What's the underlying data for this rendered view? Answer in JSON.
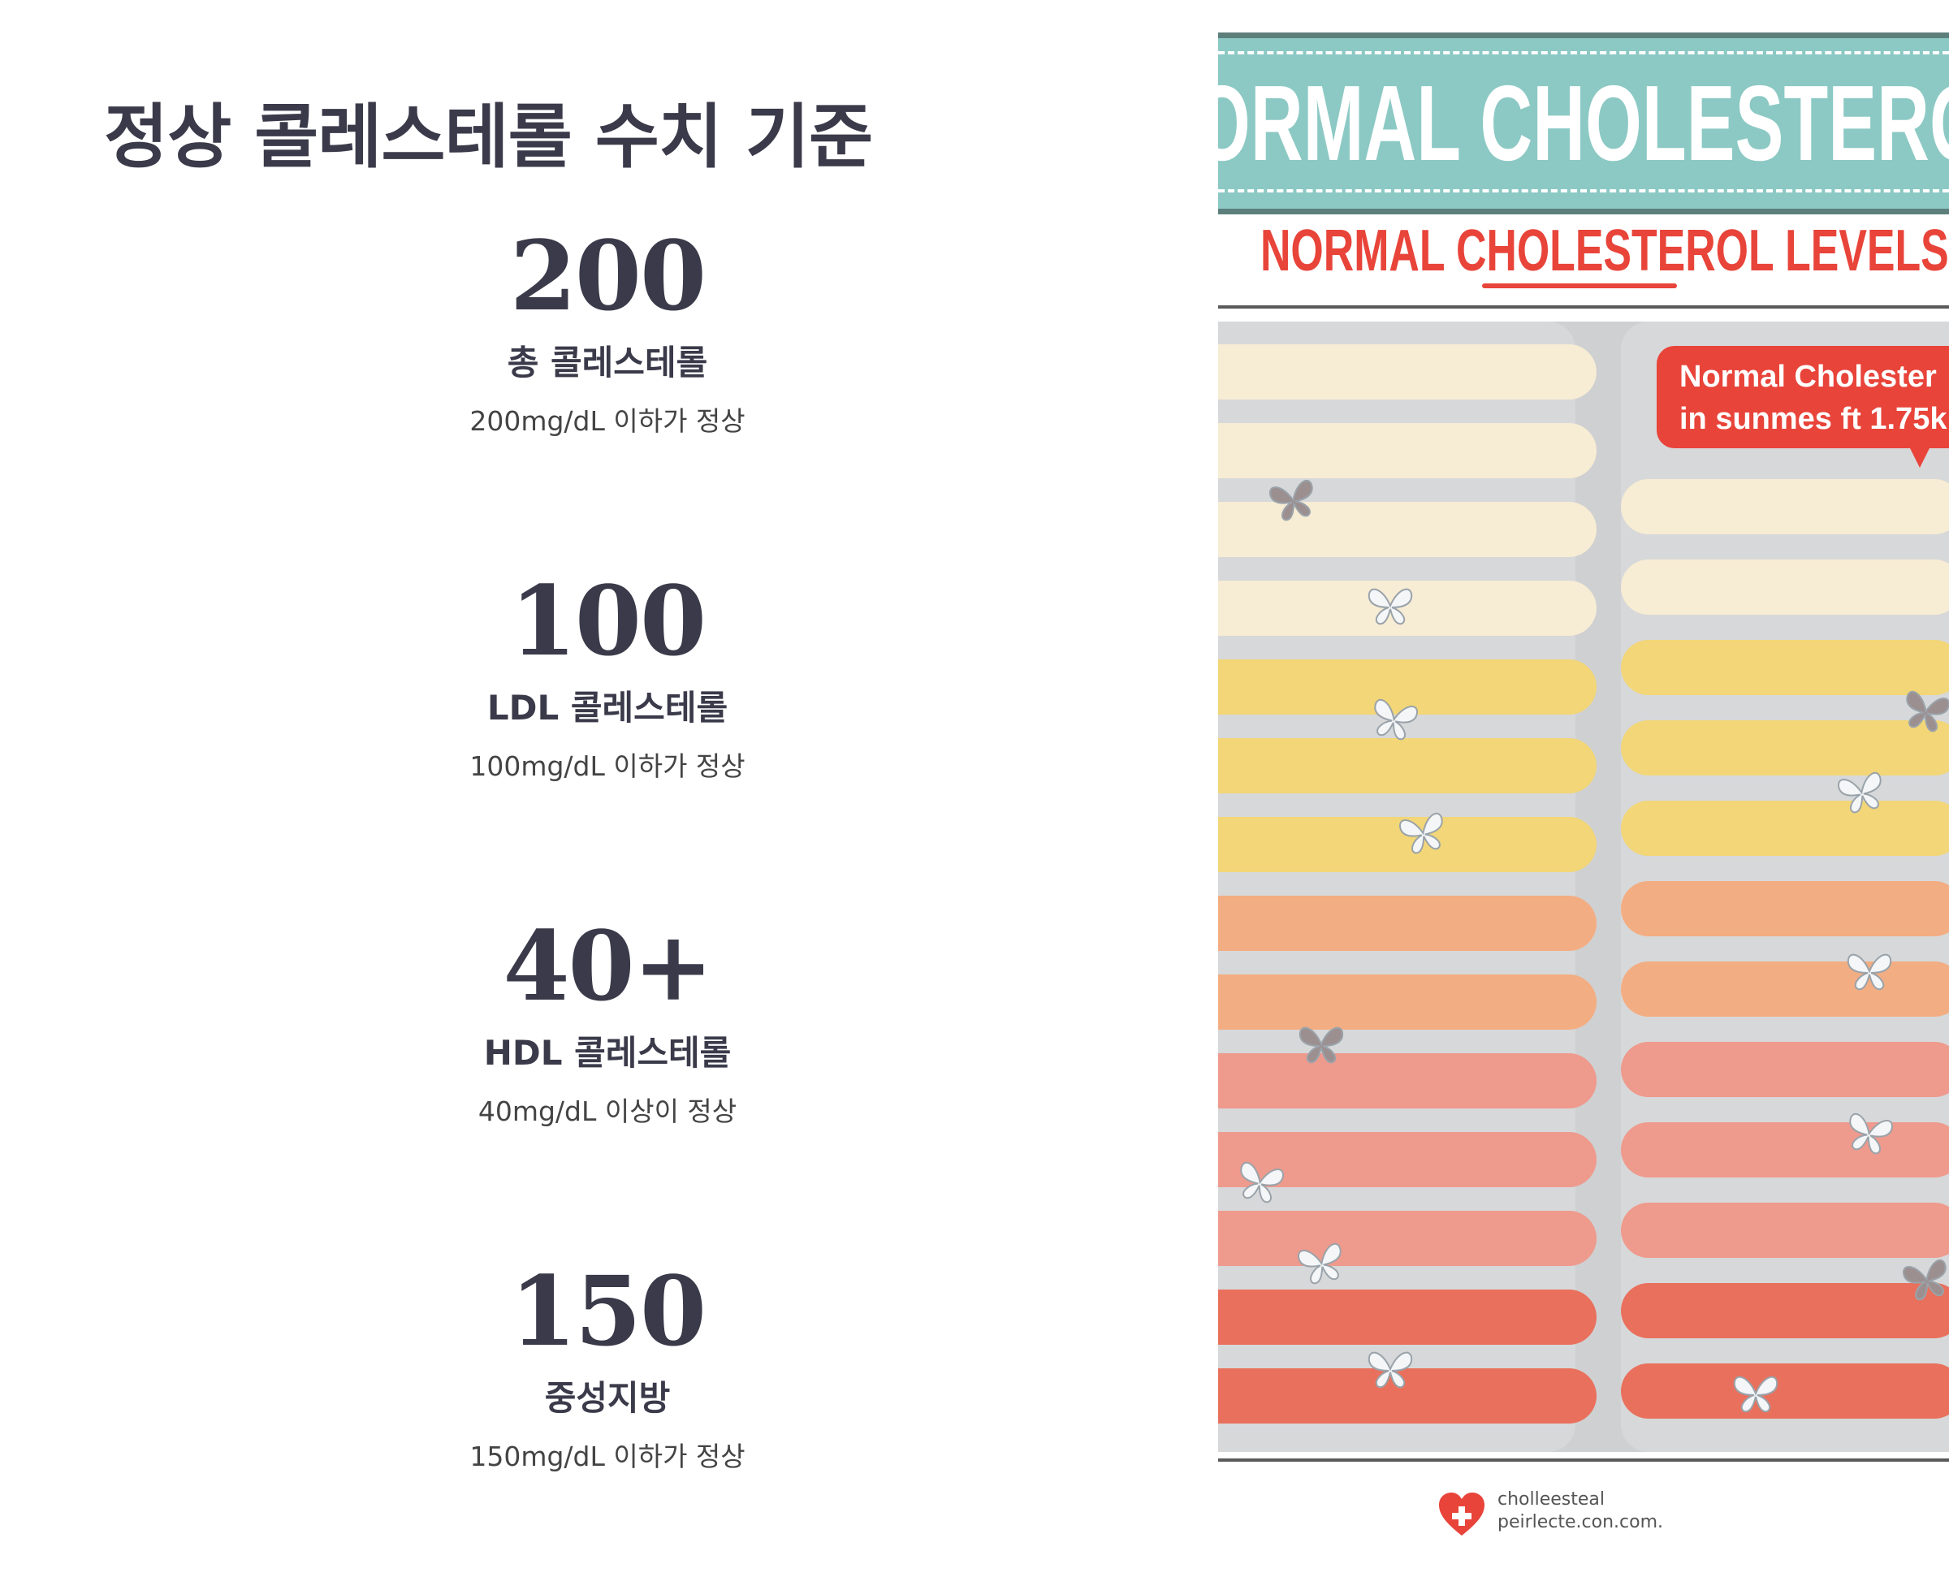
{
  "page": {
    "title": "정상 콜레스테롤 수치 기준"
  },
  "stats": [
    {
      "value": "200",
      "label": "총 콜레스테롤",
      "desc": "200mg/dL 이하가 정상"
    },
    {
      "value": "100",
      "label": "LDL 콜레스테롤",
      "desc": "100mg/dL 이하가 정상"
    },
    {
      "value": "40+",
      "label": "HDL 콜레스테롤",
      "desc": "40mg/dL 이상이 정상"
    },
    {
      "value": "150",
      "label": "중성지방",
      "desc": "150mg/dL 이하가 정상"
    }
  ],
  "poster": {
    "banner_text": "ORMAL CHOLESTERO",
    "subtitle": "NORMAL CHOLESTEROL LEVELS",
    "bubble_line1": "Normal Cholester",
    "bubble_line2": "in sunmes ft 1.75k",
    "footer_line1": "cholleesteal",
    "footer_line2": "peirlecte.con.com.",
    "colors": {
      "banner": "#8cc9c4",
      "accent_red": "#e8443a",
      "band_cream": "#f7ecd4",
      "band_yellow": "#f2d677",
      "band_orange": "#f3ad82",
      "band_pink": "#ee9a8d",
      "band_red": "#e9705c"
    },
    "icons": [
      "butterfly-icon",
      "heart-logo-icon"
    ]
  }
}
